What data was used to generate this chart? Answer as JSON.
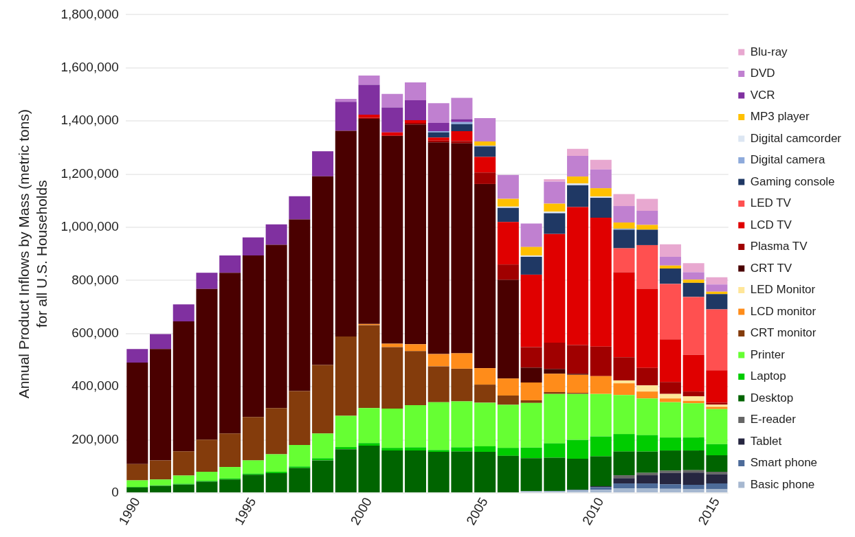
{
  "chart_data": {
    "type": "bar",
    "stacked": true,
    "ylabel": "Annual Product Inflows by Mass (metric tons)\nfor all U.S. Households",
    "categories": [
      "1990",
      null,
      null,
      null,
      null,
      "1995",
      null,
      null,
      null,
      null,
      "2000",
      null,
      null,
      null,
      null,
      "2005",
      null,
      null,
      null,
      null,
      "2010",
      null,
      null,
      null,
      null,
      "2015"
    ],
    "ylim": [
      0,
      1800000
    ],
    "yticks": [
      0,
      {
        "value": 200000,
        "label": "200,000"
      },
      {
        "value": 400000,
        "label": "400,000"
      },
      {
        "value": 600000,
        "label": "600,000"
      },
      {
        "value": 800000,
        "label": "800,000"
      },
      {
        "value": 1000000,
        "label": "1,000,000"
      },
      {
        "value": 1200000,
        "label": "1,200,000"
      },
      {
        "value": 1400000,
        "label": "1,400,000"
      },
      {
        "value": 1600000,
        "label": "1,600,000"
      },
      {
        "value": 1800000,
        "label": "1,800,000"
      }
    ],
    "grid": "y",
    "legend": "right",
    "series": [
      {
        "name": "Basic phone",
        "color": "#a6b8d0",
        "values": [
          0,
          0,
          0,
          0,
          0,
          0,
          0,
          0,
          0,
          0,
          0,
          0,
          0,
          null,
          null,
          null,
          null,
          7000,
          8000,
          9000,
          12000,
          18000,
          18000,
          16000,
          14000,
          14000
        ]
      },
      {
        "name": "Smart phone",
        "color": "#4d6b99",
        "values": [
          0,
          0,
          0,
          0,
          0,
          0,
          0,
          0,
          0,
          0,
          0,
          0,
          0,
          0,
          0,
          0,
          0,
          0,
          0,
          3000,
          10000,
          18000,
          18000,
          17000,
          17000,
          22000
        ]
      },
      {
        "name": "Tablet",
        "color": "#262640",
        "values": [
          0,
          0,
          0,
          0,
          0,
          0,
          0,
          0,
          0,
          0,
          0,
          0,
          0,
          0,
          0,
          0,
          0,
          0,
          0,
          0,
          4000,
          20000,
          31000,
          43000,
          46000,
          35000
        ]
      },
      {
        "name": "E-reader",
        "color": "#666666",
        "values": [
          0,
          0,
          0,
          0,
          0,
          0,
          0,
          0,
          0,
          0,
          0,
          0,
          0,
          0,
          0,
          0,
          0,
          0,
          0,
          0,
          0,
          11000,
          9000,
          8000,
          9000,
          9000
        ]
      },
      {
        "name": "Desktop",
        "color": "#006400",
        "values": [
          21000,
          27000,
          32000,
          43000,
          51000,
          69000,
          75000,
          94000,
          123000,
          165000,
          178000,
          160000,
          160000,
          155000,
          156000,
          155000,
          140000,
          124000,
          125000,
          117000,
          112000,
          89000,
          80000,
          76000,
          74000,
          62000
        ]
      },
      {
        "name": "Laptop",
        "color": "#00cc00",
        "values": [
          2000,
          2000,
          3000,
          3000,
          4000,
          4000,
          5000,
          6000,
          8000,
          8000,
          10000,
          10000,
          12000,
          7000,
          16000,
          21000,
          30000,
          40000,
          54000,
          71000,
          75000,
          66000,
          62000,
          49000,
          49000,
          42000
        ]
      },
      {
        "name": "Printer",
        "color": "#66ff33",
        "values": [
          25000,
          22000,
          31000,
          34000,
          43000,
          50000,
          66000,
          81000,
          93000,
          118000,
          132000,
          148000,
          159000,
          180000,
          173000,
          164000,
          162000,
          168000,
          186000,
          173000,
          160000,
          147000,
          138000,
          133000,
          129000,
          132000
        ]
      },
      {
        "name": "CRT monitor",
        "color": "#843c0c",
        "values": [
          61000,
          72000,
          91000,
          121000,
          126000,
          163000,
          174000,
          203000,
          258000,
          298000,
          312000,
          231000,
          203000,
          135000,
          123000,
          68000,
          35000,
          10000,
          7000,
          4000,
          0,
          0,
          0,
          0,
          0,
          0
        ]
      },
      {
        "name": "LCD monitor",
        "color": "#ff8c1a",
        "values": [
          0,
          0,
          0,
          0,
          0,
          0,
          0,
          0,
          0,
          0,
          4000,
          13000,
          26000,
          46000,
          58000,
          62000,
          64000,
          67000,
          69000,
          68000,
          67000,
          44000,
          26000,
          14000,
          9000,
          8000
        ]
      },
      {
        "name": "LED Monitor",
        "color": "#ffe699",
        "values": [
          0,
          0,
          0,
          0,
          0,
          0,
          0,
          0,
          0,
          0,
          0,
          0,
          0,
          0,
          0,
          0,
          0,
          0,
          0,
          0,
          0,
          11000,
          23000,
          17000,
          17000,
          9000
        ]
      },
      {
        "name": "CRT TV",
        "color": "#4a0000",
        "values": [
          382000,
          419000,
          489000,
          567000,
          605000,
          608000,
          614000,
          646000,
          710000,
          774000,
          772000,
          782000,
          827000,
          797000,
          790000,
          693000,
          371000,
          56000,
          18000,
          4000,
          0,
          0,
          0,
          0,
          0,
          0
        ]
      },
      {
        "name": "Plasma TV",
        "color": "#a00000",
        "values": [
          0,
          0,
          0,
          0,
          0,
          0,
          0,
          0,
          0,
          0,
          4000,
          0,
          6000,
          6000,
          8000,
          43000,
          58000,
          77000,
          99000,
          108000,
          111000,
          87000,
          66000,
          45000,
          18000,
          7000
        ]
      },
      {
        "name": "LCD TV",
        "color": "#e00000",
        "values": [
          0,
          0,
          0,
          0,
          0,
          0,
          0,
          0,
          0,
          0,
          12000,
          13000,
          10000,
          12000,
          38000,
          59000,
          160000,
          273000,
          409000,
          519000,
          485000,
          320000,
          298000,
          160000,
          138000,
          122000
        ]
      },
      {
        "name": "LED TV",
        "color": "#ff5050",
        "values": [
          0,
          0,
          0,
          0,
          0,
          0,
          0,
          0,
          0,
          0,
          0,
          0,
          0,
          0,
          0,
          0,
          0,
          0,
          0,
          0,
          0,
          90000,
          164000,
          209000,
          218000,
          229000
        ]
      },
      {
        "name": "Gaming console",
        "color": "#1f3864",
        "values": [
          0,
          0,
          0,
          0,
          0,
          0,
          0,
          0,
          0,
          0,
          0,
          0,
          0,
          19000,
          26000,
          39000,
          53000,
          67000,
          78000,
          82000,
          75000,
          70000,
          58000,
          58000,
          53000,
          58000
        ]
      },
      {
        "name": "Digital camera",
        "color": "#8eaadb",
        "values": [
          0,
          0,
          0,
          0,
          0,
          0,
          0,
          0,
          0,
          0,
          0,
          0,
          0,
          5000,
          8000,
          3000,
          0,
          0,
          0,
          0,
          0,
          4000,
          0,
          0,
          0,
          0
        ]
      },
      {
        "name": "Digital camcorder",
        "color": "#dce6f2",
        "values": [
          0,
          0,
          0,
          0,
          0,
          0,
          0,
          0,
          0,
          0,
          0,
          0,
          0,
          0,
          0,
          null,
          5000,
          5000,
          6000,
          7000,
          5000,
          0,
          0,
          0,
          0,
          0
        ]
      },
      {
        "name": "MP3 player",
        "color": "#ffc000",
        "values": [
          0,
          0,
          0,
          0,
          0,
          0,
          0,
          0,
          0,
          0,
          0,
          0,
          0,
          0,
          0,
          16000,
          29000,
          32000,
          30000,
          26000,
          31000,
          23000,
          18000,
          11000,
          12000,
          9000
        ]
      },
      {
        "name": "VCR",
        "color": "#8030a0",
        "values": [
          51000,
          56000,
          64000,
          61000,
          65000,
          68000,
          77000,
          87000,
          94000,
          109000,
          112000,
          94000,
          75000,
          31000,
          11000,
          0,
          0,
          0,
          0,
          0,
          0,
          0,
          0,
          0,
          0,
          0
        ]
      },
      {
        "name": "DVD",
        "color": "#c080d0",
        "values": [
          0,
          0,
          0,
          0,
          0,
          0,
          0,
          0,
          0,
          11000,
          35000,
          51000,
          67000,
          74000,
          80000,
          88000,
          90000,
          88000,
          83000,
          78000,
          71000,
          62000,
          53000,
          33000,
          28000,
          27000
        ]
      },
      {
        "name": "Blu-ray",
        "color": "#e8a8d0",
        "values": [
          0,
          0,
          0,
          0,
          0,
          0,
          0,
          0,
          0,
          0,
          0,
          0,
          0,
          0,
          0,
          0,
          0,
          0,
          9000,
          26000,
          36000,
          45000,
          45000,
          47000,
          34000,
          27000
        ]
      }
    ]
  }
}
